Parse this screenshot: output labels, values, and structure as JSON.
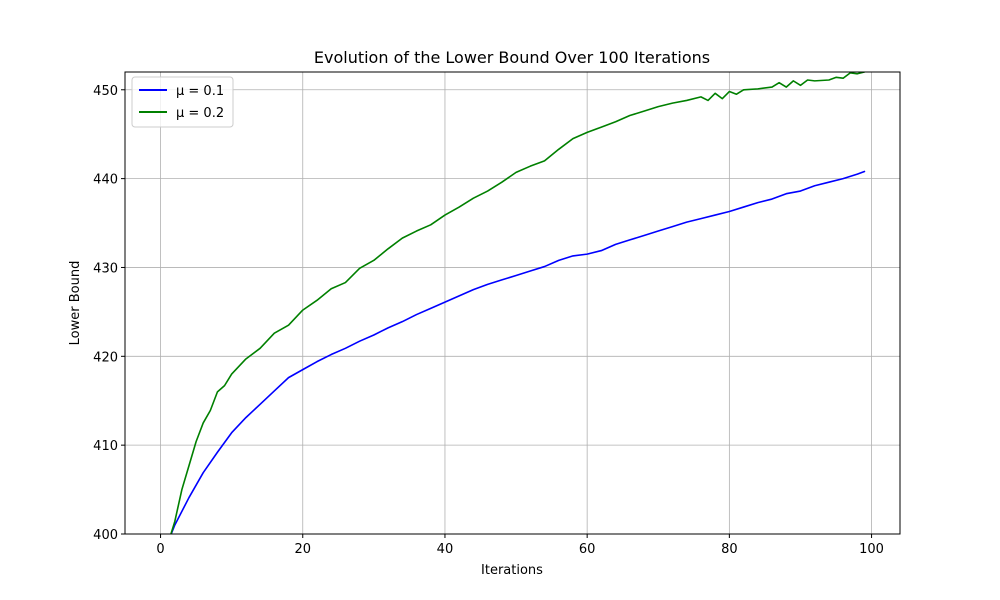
{
  "chart_data": {
    "type": "line",
    "title": "Evolution of the Lower Bound Over 100 Iterations",
    "xlabel": "Iterations",
    "ylabel": "Lower Bound",
    "xlim": [
      -5,
      104
    ],
    "ylim": [
      400,
      452
    ],
    "xticks": [
      "0",
      "20",
      "40",
      "60",
      "80",
      "100"
    ],
    "yticks": [
      "400",
      "410",
      "420",
      "430",
      "440",
      "450"
    ],
    "grid": true,
    "legend_position": "upper left",
    "series": [
      {
        "name": "μ = 0.1",
        "color": "#0000ff",
        "x": [
          1,
          2,
          4,
          6,
          8,
          10,
          12,
          14,
          16,
          18,
          20,
          22,
          24,
          26,
          28,
          30,
          32,
          34,
          36,
          38,
          40,
          42,
          44,
          46,
          48,
          50,
          52,
          54,
          56,
          58,
          60,
          62,
          64,
          66,
          68,
          70,
          72,
          74,
          76,
          78,
          80,
          82,
          84,
          86,
          88,
          90,
          92,
          94,
          96,
          98,
          99
        ],
        "y": [
          399.0,
          401.0,
          404.1,
          406.9,
          409.2,
          411.4,
          413.1,
          414.6,
          416.1,
          417.6,
          418.5,
          419.4,
          420.2,
          420.9,
          421.7,
          422.4,
          423.2,
          423.9,
          424.7,
          425.4,
          426.1,
          426.8,
          427.5,
          428.1,
          428.6,
          429.1,
          429.6,
          430.1,
          430.8,
          431.3,
          431.5,
          431.9,
          432.6,
          433.1,
          433.6,
          434.1,
          434.6,
          435.1,
          435.5,
          435.9,
          436.3,
          436.8,
          437.3,
          437.7,
          438.3,
          438.6,
          439.2,
          439.6,
          440.0,
          440.5,
          440.8
        ]
      },
      {
        "name": "μ = 0.2",
        "color": "#008000",
        "x": [
          1,
          2,
          3,
          4,
          5,
          6,
          7,
          8,
          9,
          10,
          12,
          14,
          16,
          18,
          20,
          22,
          24,
          26,
          28,
          30,
          32,
          34,
          36,
          38,
          40,
          42,
          44,
          46,
          48,
          50,
          52,
          54,
          56,
          58,
          60,
          62,
          64,
          66,
          68,
          70,
          72,
          74,
          76,
          77,
          78,
          79,
          80,
          81,
          82,
          84,
          86,
          87,
          88,
          89,
          90,
          91,
          92,
          94,
          95,
          96,
          97,
          98,
          99
        ],
        "y": [
          398.8,
          401.4,
          405.0,
          407.7,
          410.4,
          412.5,
          413.9,
          416.0,
          416.7,
          418.0,
          419.7,
          420.9,
          422.6,
          423.5,
          425.2,
          426.3,
          427.6,
          428.3,
          429.9,
          430.8,
          432.1,
          433.3,
          434.1,
          434.8,
          435.9,
          436.8,
          437.8,
          438.6,
          439.6,
          440.7,
          441.4,
          442.0,
          443.3,
          444.5,
          445.2,
          445.8,
          446.4,
          447.1,
          447.6,
          448.1,
          448.5,
          448.8,
          449.2,
          448.8,
          449.6,
          449.0,
          449.8,
          449.5,
          450.0,
          450.1,
          450.3,
          450.8,
          450.3,
          451.0,
          450.5,
          451.1,
          451.0,
          451.1,
          451.4,
          451.3,
          451.9,
          451.8,
          452.0
        ]
      }
    ]
  }
}
